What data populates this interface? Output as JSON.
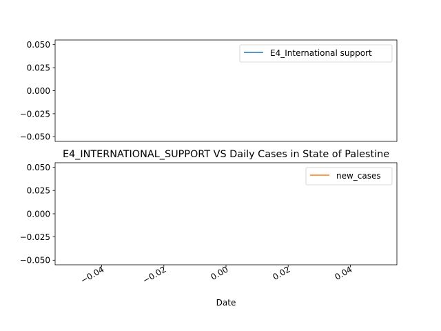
{
  "chart_data": [
    {
      "type": "line",
      "title": "",
      "xlabel": "",
      "ylabel": "",
      "ylim": [
        -0.055,
        0.055
      ],
      "yticks": [
        -0.05,
        -0.025,
        0.0,
        0.025,
        0.05
      ],
      "ytick_labels": [
        "−0.050",
        "−0.025",
        "0.000",
        "0.025",
        "0.050"
      ],
      "legend_position": "upper right",
      "grid": false,
      "series": [
        {
          "name": "E4_International support",
          "color": "#1f77b4",
          "x": [],
          "y": []
        }
      ]
    },
    {
      "type": "line",
      "title": "E4_INTERNATIONAL_SUPPORT VS Daily Cases in State of Palestine",
      "xlabel": "Date",
      "ylabel": "",
      "xlim": [
        -0.055,
        0.055
      ],
      "ylim": [
        -0.055,
        0.055
      ],
      "xticks": [
        -0.04,
        -0.02,
        0.0,
        0.02,
        0.04
      ],
      "xtick_labels": [
        "−0.04",
        "−0.02",
        "0.00",
        "0.02",
        "0.04"
      ],
      "yticks": [
        -0.05,
        -0.025,
        0.0,
        0.025,
        0.05
      ],
      "ytick_labels": [
        "−0.050",
        "−0.025",
        "0.000",
        "0.025",
        "0.050"
      ],
      "legend_position": "upper right",
      "grid": false,
      "series": [
        {
          "name": "new_cases",
          "color": "#ff7f0e",
          "x": [],
          "y": []
        }
      ]
    }
  ]
}
